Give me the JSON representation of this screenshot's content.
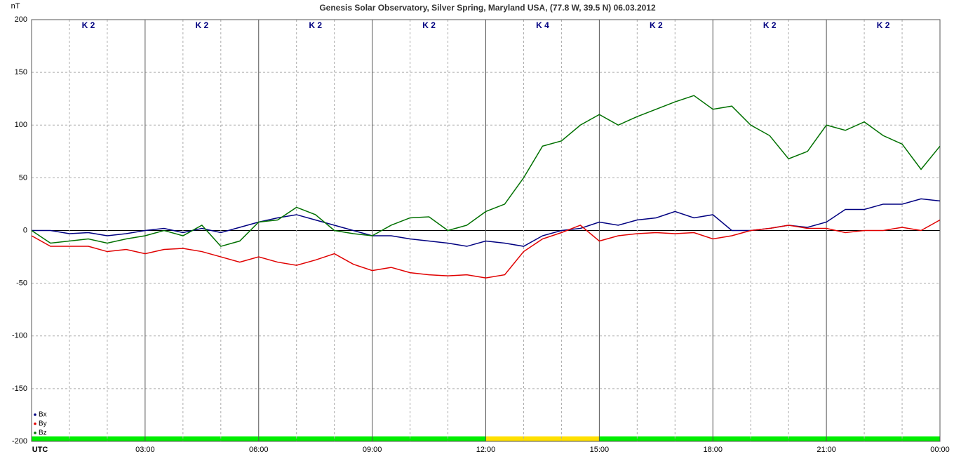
{
  "chart_data": {
    "type": "line",
    "title": "Genesis Solar Observatory, Silver Spring, Maryland USA, (77.8 W, 39.5 N)  06.03.2012",
    "y_label": "nT",
    "x": [
      0,
      0.5,
      1,
      1.5,
      2,
      2.5,
      3,
      3.5,
      4,
      4.5,
      5,
      5.5,
      6,
      6.5,
      7,
      7.5,
      8,
      8.5,
      9,
      9.5,
      10,
      10.5,
      11,
      11.5,
      12,
      12.5,
      13,
      13.5,
      14,
      14.5,
      15,
      15.5,
      16,
      16.5,
      17,
      17.5,
      18,
      18.5,
      19,
      19.5,
      20,
      20.5,
      21,
      21.5,
      22,
      22.5,
      23,
      23.5,
      24
    ],
    "xlim": [
      0,
      24
    ],
    "xticks": [
      {
        "value": 0,
        "label": "UTC"
      },
      {
        "value": 3,
        "label": "03:00"
      },
      {
        "value": 6,
        "label": "06:00"
      },
      {
        "value": 9,
        "label": "09:00"
      },
      {
        "value": 12,
        "label": "12:00"
      },
      {
        "value": 15,
        "label": "15:00"
      },
      {
        "value": 18,
        "label": "18:00"
      },
      {
        "value": 21,
        "label": "21:00"
      },
      {
        "value": 24,
        "label": "00:00"
      }
    ],
    "ylim": [
      -200,
      200
    ],
    "yticks": [
      -200,
      -150,
      -100,
      -50,
      0,
      50,
      100,
      150,
      200
    ],
    "grid": true,
    "legend": "bottom-left",
    "series": [
      {
        "name": "Bx",
        "color": "#000080",
        "values": [
          0,
          0,
          -3,
          -2,
          -5,
          -3,
          0,
          2,
          -2,
          2,
          -2,
          3,
          8,
          12,
          15,
          10,
          5,
          0,
          -5,
          -5,
          -8,
          -10,
          -12,
          -15,
          -10,
          -12,
          -15,
          -5,
          0,
          2,
          8,
          5,
          10,
          12,
          18,
          12,
          15,
          0,
          0,
          2,
          5,
          3,
          8,
          20,
          20,
          25,
          25,
          30,
          28
        ]
      },
      {
        "name": "By",
        "color": "#e00000",
        "values": [
          -5,
          -15,
          -15,
          -15,
          -20,
          -18,
          -22,
          -18,
          -17,
          -20,
          -25,
          -30,
          -25,
          -30,
          -33,
          -28,
          -22,
          -32,
          -38,
          -35,
          -40,
          -42,
          -43,
          -42,
          -45,
          -42,
          -20,
          -8,
          -2,
          5,
          -10,
          -5,
          -3,
          -2,
          -3,
          -2,
          -8,
          -5,
          0,
          2,
          5,
          2,
          2,
          -2,
          0,
          0,
          3,
          0,
          10
        ]
      },
      {
        "name": "Bz",
        "color": "#007000",
        "values": [
          0,
          -12,
          -10,
          -8,
          -12,
          -8,
          -5,
          0,
          -5,
          5,
          -15,
          -10,
          8,
          10,
          22,
          15,
          0,
          -3,
          -5,
          5,
          12,
          13,
          0,
          5,
          18,
          25,
          50,
          80,
          85,
          100,
          110,
          100,
          108,
          115,
          122,
          128,
          115,
          118,
          100,
          90,
          68,
          75,
          100,
          95,
          103,
          90,
          82,
          58,
          80
        ]
      }
    ],
    "k_index": {
      "labels": [
        "K 2",
        "K 2",
        "K 2",
        "K 2",
        "K 4",
        "K 2",
        "K 2",
        "K 2"
      ],
      "colors": [
        "#00ee00",
        "#00ee00",
        "#00ee00",
        "#00ee00",
        "#ffe000",
        "#00ee00",
        "#00ee00",
        "#00ee00"
      ]
    }
  }
}
